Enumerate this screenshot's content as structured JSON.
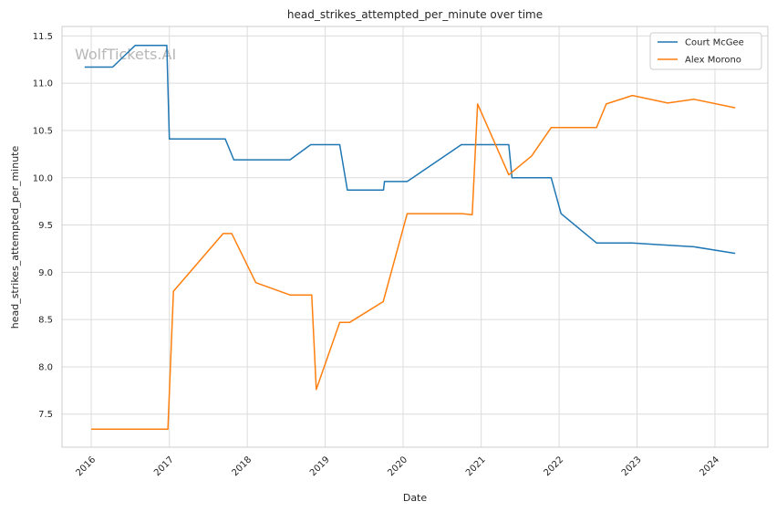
{
  "chart_data": {
    "type": "line",
    "title": "head_strikes_attempted_per_minute over time",
    "xlabel": "Date",
    "ylabel": "head_strikes_attempted_per_minute",
    "watermark": "WolfTickets.AI",
    "xlim": [
      "2015-08-17",
      "2024-09-05"
    ],
    "ylim": [
      7.15,
      11.6
    ],
    "x_ticks": [
      "2016",
      "2017",
      "2018",
      "2019",
      "2020",
      "2021",
      "2022",
      "2023",
      "2024"
    ],
    "y_ticks": [
      "7.5",
      "8.0",
      "8.5",
      "9.0",
      "9.5",
      "10.0",
      "10.5",
      "11.0",
      "11.5"
    ],
    "grid": true,
    "legend_position": "top-right",
    "series": [
      {
        "name": "Court McGee",
        "color": "#1f77b4",
        "points": [
          [
            "2015-12-01",
            11.17
          ],
          [
            "2016-04-10",
            11.17
          ],
          [
            "2016-07-25",
            11.4
          ],
          [
            "2016-12-20",
            11.4
          ],
          [
            "2017-01-01",
            10.41
          ],
          [
            "2017-09-20",
            10.41
          ],
          [
            "2017-10-30",
            10.19
          ],
          [
            "2018-07-20",
            10.19
          ],
          [
            "2018-10-25",
            10.35
          ],
          [
            "2019-03-10",
            10.35
          ],
          [
            "2019-04-15",
            9.87
          ],
          [
            "2019-10-01",
            9.87
          ],
          [
            "2019-10-06",
            9.96
          ],
          [
            "2020-01-20",
            9.96
          ],
          [
            "2020-09-30",
            10.35
          ],
          [
            "2021-05-10",
            10.35
          ],
          [
            "2021-05-25",
            10.0
          ],
          [
            "2021-11-25",
            10.0
          ],
          [
            "2022-01-10",
            9.62
          ],
          [
            "2022-06-25",
            9.31
          ],
          [
            "2022-12-10",
            9.31
          ],
          [
            "2023-04-25",
            9.29
          ],
          [
            "2023-09-25",
            9.27
          ],
          [
            "2024-04-05",
            9.2
          ]
        ]
      },
      {
        "name": "Alex Morono",
        "color": "#ff7f0e",
        "points": [
          [
            "2016-01-01",
            7.34
          ],
          [
            "2016-12-25",
            7.34
          ],
          [
            "2017-01-20",
            8.8
          ],
          [
            "2017-09-10",
            9.41
          ],
          [
            "2017-10-20",
            9.41
          ],
          [
            "2018-02-10",
            8.89
          ],
          [
            "2018-07-20",
            8.76
          ],
          [
            "2018-10-30",
            8.76
          ],
          [
            "2018-11-20",
            7.76
          ],
          [
            "2019-03-10",
            8.47
          ],
          [
            "2019-04-25",
            8.47
          ],
          [
            "2019-09-30",
            8.69
          ],
          [
            "2020-01-20",
            9.62
          ],
          [
            "2020-10-01",
            9.62
          ],
          [
            "2020-11-20",
            9.61
          ],
          [
            "2020-12-15",
            10.78
          ],
          [
            "2021-05-10",
            10.03
          ],
          [
            "2021-08-25",
            10.23
          ],
          [
            "2021-11-25",
            10.53
          ],
          [
            "2022-06-25",
            10.53
          ],
          [
            "2022-08-10",
            10.78
          ],
          [
            "2022-12-10",
            10.87
          ],
          [
            "2023-05-25",
            10.79
          ],
          [
            "2023-09-25",
            10.83
          ],
          [
            "2024-04-05",
            10.74
          ]
        ]
      }
    ]
  }
}
